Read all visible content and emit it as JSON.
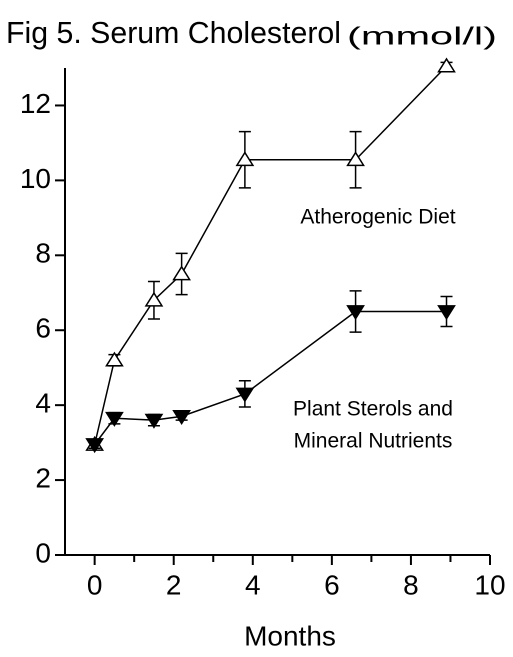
{
  "chart_data": {
    "type": "line",
    "title": "Fig 5. Serum Cholesterol",
    "title_unit": "(mmol/l)",
    "xlabel": "Months",
    "xlim": [
      -0.75,
      10
    ],
    "xticks": [
      0,
      2,
      4,
      6,
      8,
      10
    ],
    "xminorticks": [
      1,
      3,
      5,
      7,
      9
    ],
    "ylim": [
      0,
      13
    ],
    "yticks": [
      0,
      2,
      4,
      6,
      8,
      10,
      12
    ],
    "x": [
      0,
      0.5,
      1.5,
      2.2,
      3.8,
      6.6,
      8.9
    ],
    "series": [
      {
        "color": "#000000",
        "marker": "triangle-up",
        "filled": false,
        "values": [
          2.95,
          5.2,
          6.8,
          7.5,
          10.55,
          10.55,
          13.05
        ],
        "errors": [
          0.1,
          0.15,
          0.5,
          0.55,
          0.75,
          0.75,
          0.1
        ]
      },
      {
        "color": "#000000",
        "marker": "triangle-down",
        "filled": true,
        "values": [
          2.95,
          3.65,
          3.6,
          3.7,
          4.3,
          6.5,
          6.5
        ],
        "errors": [
          0.1,
          0.15,
          0.15,
          0.1,
          0.35,
          0.55,
          0.4
        ]
      }
    ],
    "annotations": [
      "Atherogenic Diet",
      "Plant Sterols and",
      "Mineral Nutrients"
    ]
  }
}
